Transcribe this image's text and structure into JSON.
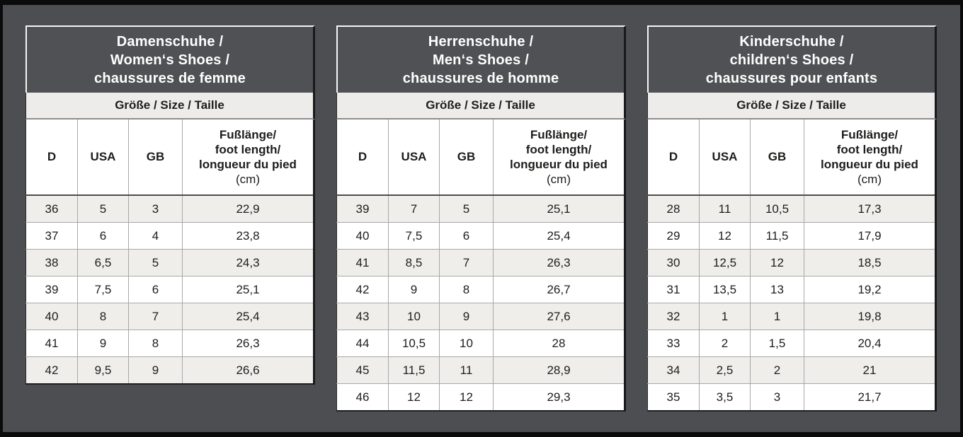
{
  "page": {
    "background_color": "#4c4e51",
    "frame_color": "#0b0b0b",
    "title_fill_color": "#4f5154",
    "title_text_color": "#ffffff",
    "body_text_color": "#1d1d1b",
    "row_alt_color": "#efeeeb",
    "row_color": "#ffffff",
    "subheader_fill_color": "#edecea"
  },
  "tables": [
    {
      "id": "womens-shoes",
      "title_lines": [
        "Damenschuhe /",
        "Women‘s Shoes /",
        "chaussures de femme"
      ],
      "size_label": "Größe / Size / Taille",
      "col_headers": [
        "D",
        "USA",
        "GB"
      ],
      "foot_header_lines": [
        "Fußlänge/",
        "foot length/",
        "longueur du pied",
        "(cm)"
      ],
      "rows": [
        [
          "36",
          "5",
          "3",
          "22,9"
        ],
        [
          "37",
          "6",
          "4",
          "23,8"
        ],
        [
          "38",
          "6,5",
          "5",
          "24,3"
        ],
        [
          "39",
          "7,5",
          "6",
          "25,1"
        ],
        [
          "40",
          "8",
          "7",
          "25,4"
        ],
        [
          "41",
          "9",
          "8",
          "26,3"
        ],
        [
          "42",
          "9,5",
          "9",
          "26,6"
        ]
      ]
    },
    {
      "id": "mens-shoes",
      "title_lines": [
        "Herrenschuhe /",
        "Men‘s Shoes /",
        "chaussures de homme"
      ],
      "size_label": "Größe / Size / Taille",
      "col_headers": [
        "D",
        "USA",
        "GB"
      ],
      "foot_header_lines": [
        "Fußlänge/",
        "foot length/",
        "longueur du pied",
        "(cm)"
      ],
      "rows": [
        [
          "39",
          "7",
          "5",
          "25,1"
        ],
        [
          "40",
          "7,5",
          "6",
          "25,4"
        ],
        [
          "41",
          "8,5",
          "7",
          "26,3"
        ],
        [
          "42",
          "9",
          "8",
          "26,7"
        ],
        [
          "43",
          "10",
          "9",
          "27,6"
        ],
        [
          "44",
          "10,5",
          "10",
          "28"
        ],
        [
          "45",
          "11,5",
          "11",
          "28,9"
        ],
        [
          "46",
          "12",
          "12",
          "29,3"
        ]
      ]
    },
    {
      "id": "childrens-shoes",
      "title_lines": [
        "Kinderschuhe /",
        "children‘s Shoes /",
        "chaussures pour enfants"
      ],
      "size_label": "Größe / Size / Taille",
      "col_headers": [
        "D",
        "USA",
        "GB"
      ],
      "foot_header_lines": [
        "Fußlänge/",
        "foot length/",
        "longueur du pied",
        "(cm)"
      ],
      "rows": [
        [
          "28",
          "11",
          "10,5",
          "17,3"
        ],
        [
          "29",
          "12",
          "11,5",
          "17,9"
        ],
        [
          "30",
          "12,5",
          "12",
          "18,5"
        ],
        [
          "31",
          "13,5",
          "13",
          "19,2"
        ],
        [
          "32",
          "1",
          "1",
          "19,8"
        ],
        [
          "33",
          "2",
          "1,5",
          "20,4"
        ],
        [
          "34",
          "2,5",
          "2",
          "21"
        ],
        [
          "35",
          "3,5",
          "3",
          "21,7"
        ]
      ]
    }
  ]
}
